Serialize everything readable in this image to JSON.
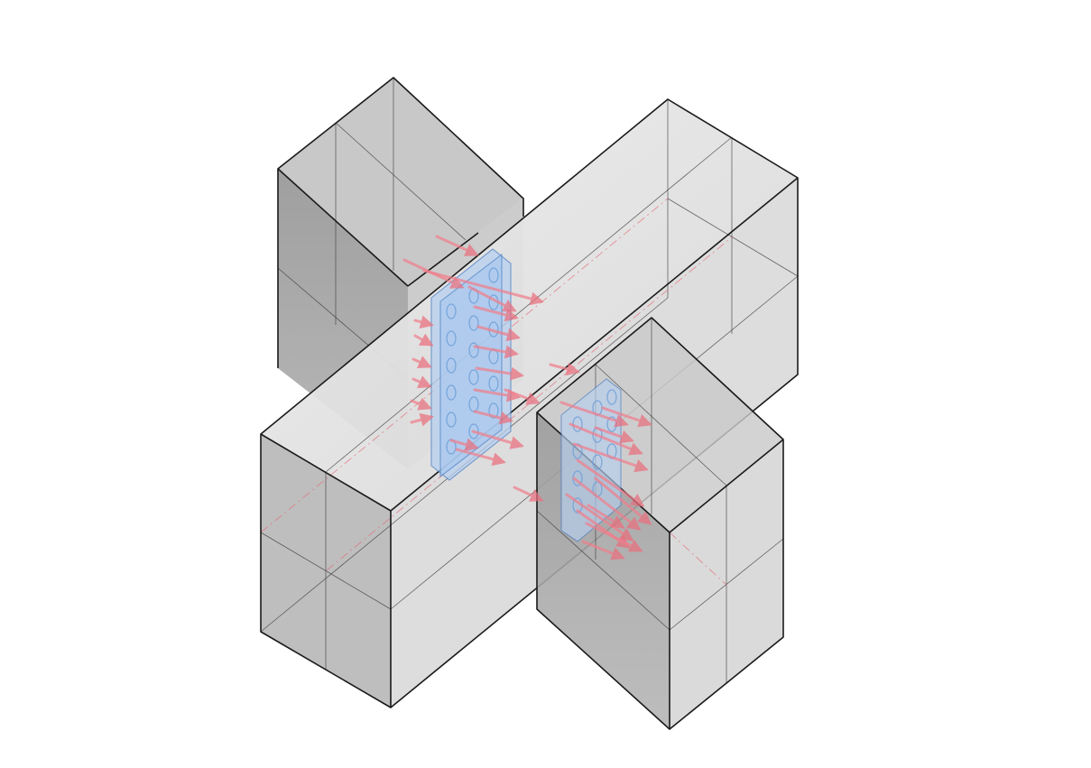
{
  "colors": {
    "background": "#ffffff",
    "volume_light": "#e6e6e6",
    "volume_mid": "#c8c8c8",
    "volume_dark": "#9e9e9e",
    "edge": "#1a1a1a",
    "connector_plate": "#a9c8ee",
    "connector_outline": "#4a7fc4",
    "force_arrow": "#f07f8c"
  },
  "icons": {
    "arrow": "force-arrow-icon"
  }
}
